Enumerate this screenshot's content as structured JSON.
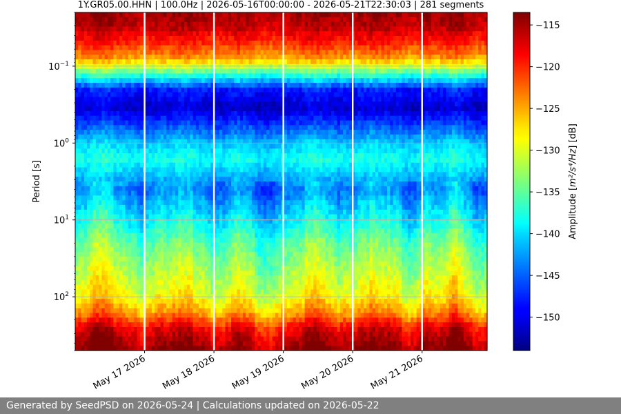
{
  "chart_data": {
    "type": "heatmap",
    "title": "1Y.GR05.00.HHN | 100.0Hz | 2026-05-16T00:00:00 - 2026-05-21T22:30:03 | 281 segments",
    "ylabel": "Period [s]",
    "y_scale": "log",
    "y_inverted": true,
    "ylim": [
      0.02,
      500
    ],
    "y_ticks": [
      {
        "value": 0.1,
        "base": "10",
        "exp": "−1"
      },
      {
        "value": 1,
        "base": "10",
        "exp": "0"
      },
      {
        "value": 10,
        "base": "10",
        "exp": "1"
      },
      {
        "value": 100,
        "base": "10",
        "exp": "2"
      }
    ],
    "x_range": [
      "2026-05-16T00:00:00",
      "2026-05-21T22:30:03"
    ],
    "x_ticks": [
      {
        "date": "2026-05-17",
        "label": "May 17 2026"
      },
      {
        "date": "2026-05-18",
        "label": "May 18 2026"
      },
      {
        "date": "2026-05-19",
        "label": "May 19 2026"
      },
      {
        "date": "2026-05-20",
        "label": "May 20 2026"
      },
      {
        "date": "2026-05-21",
        "label": "May 21 2026"
      }
    ],
    "day_boundaries": [
      "2026-05-17",
      "2026-05-18",
      "2026-05-19",
      "2026-05-20",
      "2026-05-21"
    ],
    "grid": true,
    "colormap": "jet",
    "colorbar": {
      "label_main": "Amplitude [",
      "label_unit": "m²/s⁴/Hz",
      "label_end": "] [dB]",
      "range": [
        -154,
        -113.5
      ],
      "ticks": [
        -115,
        -120,
        -125,
        -130,
        -135,
        -140,
        -145,
        -150
      ],
      "tick_labels": [
        "−115",
        "−120",
        "−125",
        "−130",
        "−135",
        "−140",
        "−145",
        "−150"
      ]
    },
    "amplitude_profile": {
      "period": [
        0.02,
        0.03,
        0.05,
        0.08,
        0.12,
        0.2,
        0.35,
        0.6,
        1,
        1.6,
        2.5,
        4,
        7,
        12,
        20,
        35,
        60,
        100,
        160,
        260,
        500
      ],
      "db": [
        -115,
        -116,
        -120,
        -125,
        -135,
        -148,
        -151,
        -146,
        -141,
        -138,
        -141,
        -144,
        -141,
        -138,
        -135,
        -133,
        -131,
        -129,
        -125,
        -118,
        -114
      ]
    }
  },
  "footer": {
    "text": "Generated by SeedPSD on 2026-05-24 | Calculations updated on 2026-05-22"
  }
}
